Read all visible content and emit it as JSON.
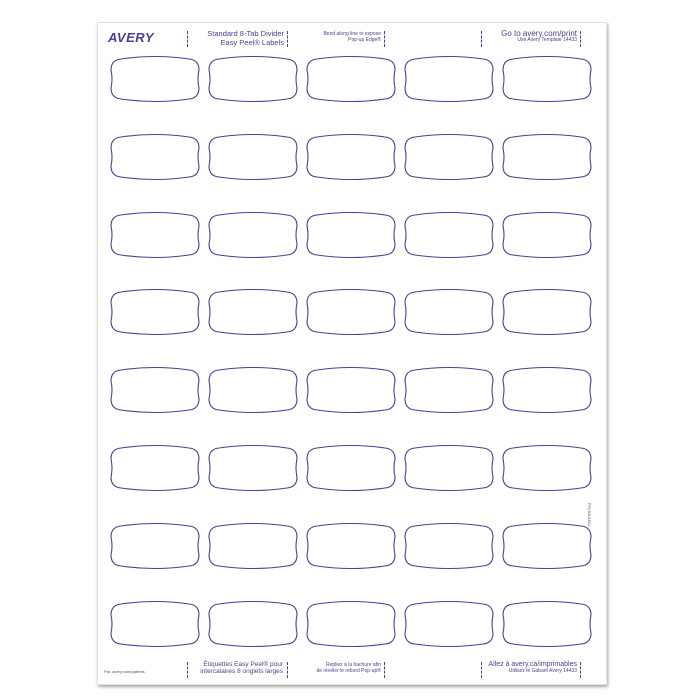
{
  "brand": {
    "logo": "AVERY",
    "color": "#4b3f93"
  },
  "header": {
    "product_line1": "Standard 8-Tab Divider",
    "product_line2": "Easy Peel® Labels",
    "bend_line1": "Bend along line to expose",
    "bend_line2": "Pop-up Edge®",
    "goto": "Go to avery.com/print",
    "template": "Use Avery Template 14433"
  },
  "footer": {
    "patent": "Pat: avery.com/patents",
    "product_fr_line1": "Étiquettes Easy Peel® pour",
    "product_fr_line2": "intercalaires 8 onglets larges",
    "bend_fr_line1": "Repliez à la hachure afin",
    "bend_fr_line2": "de révéler le rebord Pop-up®",
    "goto_fr": "Allez à avery.ca/imprimables",
    "template_fr": "Utilisez le Gabarit Avery 14433"
  },
  "side_code": "P/N 6401811",
  "grid": {
    "rows": 8,
    "columns": 5
  }
}
